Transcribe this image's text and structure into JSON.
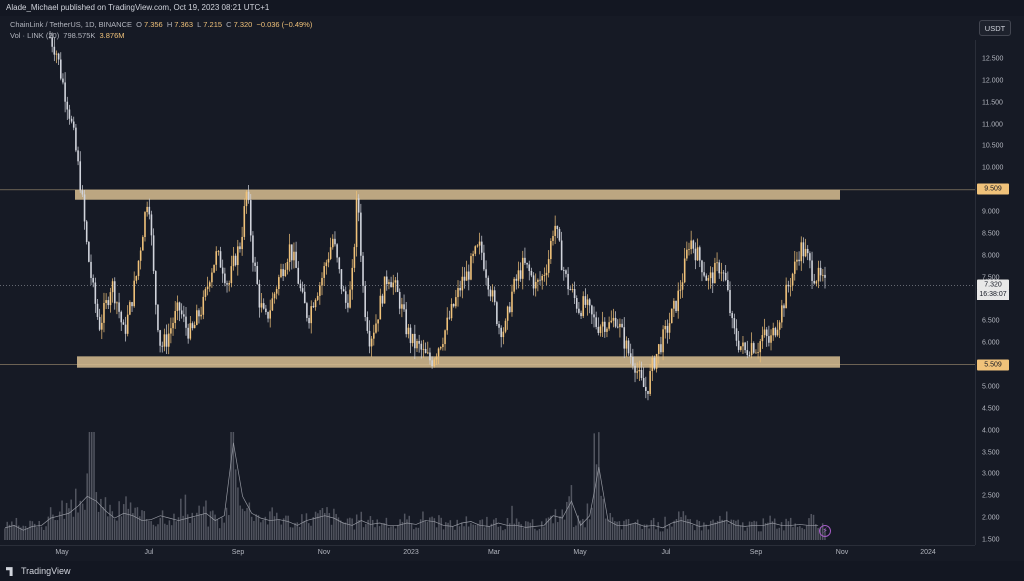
{
  "header": {
    "published": "Alade_Michael published on TradingView.com, Oct 19, 2023 08:21 UTC+1"
  },
  "legend": {
    "symbol": "ChainLink / TetherUS, 1D, BINANCE",
    "open_key": "O",
    "open_val": "7.356",
    "high_key": "H",
    "high_val": "7.363",
    "low_key": "L",
    "low_val": "7.215",
    "close_key": "C",
    "close_val": "7.320",
    "change": "−0.036 (−0.49%)",
    "vol_label": "Vol · LINK (20)",
    "vol_value": "798.575K",
    "vol_ma": "3.876M"
  },
  "currency_button": "USDT",
  "price_axis": {
    "ticks": [
      "12.500",
      "12.000",
      "11.500",
      "11.000",
      "10.500",
      "10.000",
      "9.000",
      "8.500",
      "8.000",
      "7.500",
      "6.500",
      "6.000",
      "5.000",
      "4.500",
      "4.000",
      "3.500",
      "3.000",
      "2.500",
      "2.000",
      "1.500"
    ],
    "levels": [
      "9.509",
      "5.509"
    ],
    "last_price": "7.320",
    "countdown": "16:38:07"
  },
  "time_axis": {
    "ticks": [
      "May",
      "Jul",
      "Sep",
      "Nov",
      "2023",
      "Mar",
      "May",
      "Jul",
      "Sep",
      "Nov",
      "2024"
    ]
  },
  "chart_data": {
    "type": "candlestick",
    "y_range": [
      1.5,
      13.0
    ],
    "resistance_zone": [
      9.35,
      9.509
    ],
    "support_zone": [
      5.509,
      5.7
    ],
    "last_close": 7.32,
    "price_path": [
      13.0,
      12.7,
      12.0,
      11.4,
      10.6,
      9.6,
      8.2,
      7.2,
      6.4,
      6.8,
      7.4,
      6.9,
      6.2,
      6.8,
      7.5,
      8.5,
      9.5,
      7.2,
      5.9,
      6.1,
      6.5,
      6.8,
      6.4,
      6.2,
      6.6,
      6.9,
      7.6,
      8.0,
      7.8,
      7.3,
      7.9,
      8.3,
      9.5,
      8.0,
      7.0,
      6.5,
      6.9,
      7.4,
      7.8,
      8.2,
      7.7,
      7.0,
      6.6,
      7.1,
      7.4,
      7.9,
      8.4,
      7.6,
      6.9,
      7.2,
      9.5,
      7.0,
      6.1,
      6.5,
      7.1,
      7.6,
      7.3,
      6.9,
      6.3,
      6.0,
      5.9,
      5.7,
      5.6,
      5.9,
      6.2,
      6.6,
      7.0,
      7.4,
      7.6,
      8.0,
      8.2,
      7.6,
      7.0,
      6.4,
      6.3,
      7.1,
      7.5,
      7.8,
      7.6,
      7.3,
      7.5,
      7.9,
      8.8,
      8.0,
      7.4,
      7.1,
      6.8,
      6.9,
      6.6,
      6.4,
      6.5,
      6.4,
      6.6,
      6.2,
      5.8,
      5.6,
      5.1,
      4.9,
      5.5,
      5.9,
      6.2,
      6.6,
      7.0,
      7.6,
      8.4,
      8.1,
      7.8,
      7.4,
      7.6,
      7.8,
      7.3,
      6.3,
      6.0,
      5.8,
      6.0,
      5.9,
      6.2,
      6.0,
      6.4,
      6.8,
      7.3,
      7.7,
      8.2,
      8.0,
      7.6,
      7.5,
      7.3
    ],
    "volume_path": [
      0.25,
      0.3,
      0.2,
      0.28,
      0.35,
      0.3,
      0.45,
      0.5,
      0.6,
      0.55,
      0.7,
      0.9,
      1.9,
      0.8,
      0.6,
      0.45,
      0.55,
      0.7,
      0.5,
      0.4,
      0.42,
      0.38,
      0.5,
      0.45,
      0.4,
      0.6,
      0.45,
      0.5,
      0.55,
      0.4,
      0.35,
      0.5,
      2.0,
      0.9,
      0.6,
      0.55,
      0.45,
      0.4,
      0.5,
      0.42,
      0.38,
      0.3,
      0.35,
      0.4,
      0.45,
      0.5,
      0.45,
      0.4,
      0.35,
      0.3,
      0.4,
      0.38,
      0.32,
      0.35,
      0.3,
      0.28,
      0.3,
      0.35,
      0.32,
      0.4,
      0.45,
      0.38,
      0.3,
      0.28,
      0.3,
      0.35,
      0.38,
      0.3,
      0.32,
      0.28,
      0.35,
      0.3,
      0.28,
      0.3,
      0.26,
      0.28,
      0.3,
      0.35,
      0.5,
      0.45,
      0.8,
      0.4,
      0.3,
      0.5,
      1.5,
      0.6,
      0.4,
      0.3,
      0.3,
      0.35,
      0.3,
      0.28,
      0.3,
      0.25,
      0.3,
      0.35,
      0.4,
      0.35,
      0.3,
      0.28,
      0.3,
      0.35,
      0.4,
      0.32,
      0.3,
      0.28,
      0.3,
      0.25,
      0.3,
      0.35,
      0.3,
      0.28,
      0.3,
      0.32,
      0.3,
      0.35,
      0.3,
      0.32
    ]
  },
  "footer": {
    "brand": "TradingView"
  },
  "colors": {
    "background": "#161a25",
    "candle": "#f0c27a",
    "candle_down": "#d1d4dc",
    "zone": "#d9bf92"
  }
}
